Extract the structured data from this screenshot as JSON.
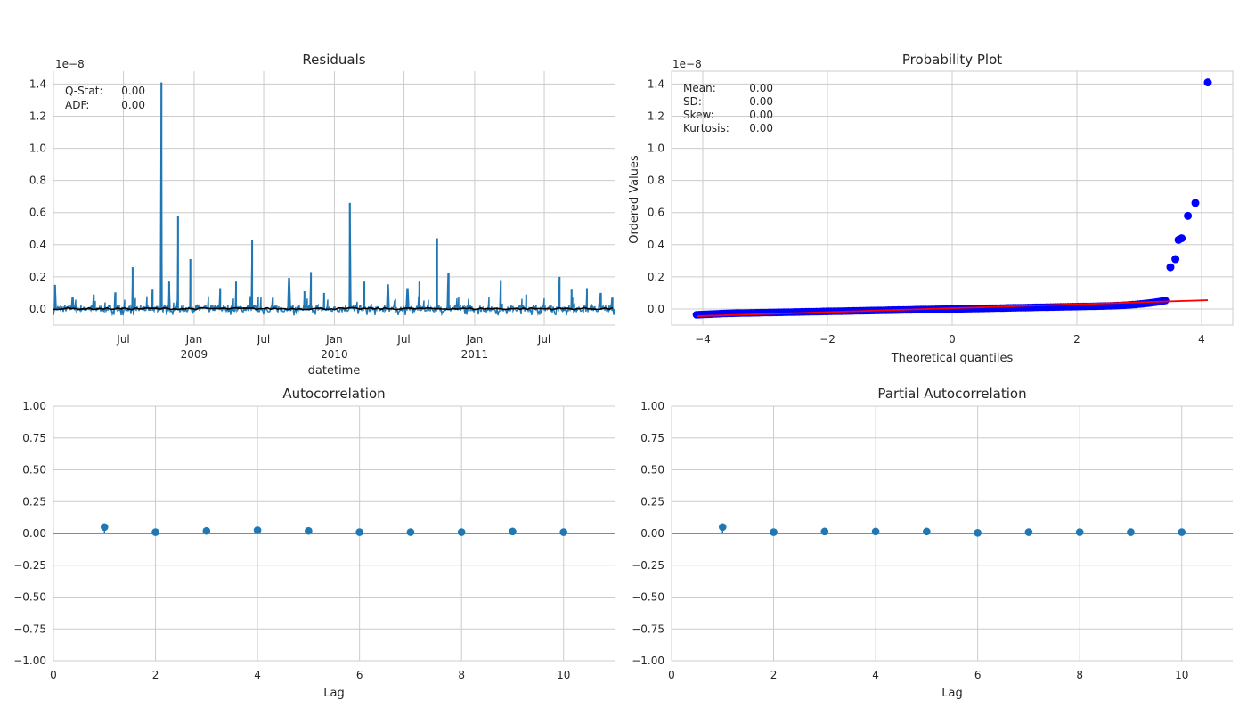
{
  "chart_data": [
    {
      "type": "line",
      "title": "Residuals",
      "xlabel": "datetime",
      "ylabel": "",
      "offset_text": "1e−8",
      "scale": 1e-08,
      "ylim": [
        -0.1,
        1.48
      ],
      "yticks": [
        0.0,
        0.2,
        0.4,
        0.6,
        0.8,
        1.0,
        1.2,
        1.4
      ],
      "ytick_labels": [
        "0.0",
        "0.2",
        "0.4",
        "0.6",
        "0.8",
        "1.0",
        "1.2",
        "1.4"
      ],
      "xlim": [
        "2008-01-01",
        "2011-12-31"
      ],
      "xticks": [
        {
          "date": "2008-07-01",
          "label": "Jul",
          "sub": ""
        },
        {
          "date": "2009-01-01",
          "label": "Jan",
          "sub": "2009"
        },
        {
          "date": "2009-07-01",
          "label": "Jul",
          "sub": ""
        },
        {
          "date": "2010-01-01",
          "label": "Jan",
          "sub": "2010"
        },
        {
          "date": "2010-07-01",
          "label": "Jul",
          "sub": ""
        },
        {
          "date": "2011-01-01",
          "label": "Jan",
          "sub": "2011"
        },
        {
          "date": "2011-07-01",
          "label": "Jul",
          "sub": ""
        }
      ],
      "spikes": [
        {
          "date": "2008-01-05",
          "value": 0.15
        },
        {
          "date": "2008-02-20",
          "value": 0.07
        },
        {
          "date": "2008-04-15",
          "value": 0.09
        },
        {
          "date": "2008-06-10",
          "value": 0.1
        },
        {
          "date": "2008-07-25",
          "value": 0.26
        },
        {
          "date": "2008-09-15",
          "value": 0.12
        },
        {
          "date": "2008-10-08",
          "value": 1.41
        },
        {
          "date": "2008-10-28",
          "value": 0.17
        },
        {
          "date": "2008-11-20",
          "value": 0.58
        },
        {
          "date": "2008-12-22",
          "value": 0.31
        },
        {
          "date": "2009-03-10",
          "value": 0.13
        },
        {
          "date": "2009-04-20",
          "value": 0.17
        },
        {
          "date": "2009-05-28",
          "value": 0.08
        },
        {
          "date": "2009-06-01",
          "value": 0.43
        },
        {
          "date": "2009-07-25",
          "value": 0.07
        },
        {
          "date": "2009-09-05",
          "value": 0.19
        },
        {
          "date": "2009-10-15",
          "value": 0.11
        },
        {
          "date": "2009-11-01",
          "value": 0.23
        },
        {
          "date": "2009-12-05",
          "value": 0.1
        },
        {
          "date": "2010-02-10",
          "value": 0.66
        },
        {
          "date": "2010-03-20",
          "value": 0.17
        },
        {
          "date": "2010-05-20",
          "value": 0.15
        },
        {
          "date": "2010-07-10",
          "value": 0.13
        },
        {
          "date": "2010-08-10",
          "value": 0.17
        },
        {
          "date": "2010-09-25",
          "value": 0.44
        },
        {
          "date": "2010-10-25",
          "value": 0.22
        },
        {
          "date": "2011-03-10",
          "value": 0.18
        },
        {
          "date": "2011-05-15",
          "value": 0.09
        },
        {
          "date": "2011-08-10",
          "value": 0.2
        },
        {
          "date": "2011-09-10",
          "value": 0.12
        },
        {
          "date": "2011-10-20",
          "value": 0.13
        },
        {
          "date": "2011-11-25",
          "value": 0.1
        },
        {
          "date": "2011-12-25",
          "value": 0.07
        }
      ],
      "annotations": [
        {
          "name": "Q-Stat:",
          "value": "0.00"
        },
        {
          "name": "ADF:",
          "value": "0.00"
        }
      ],
      "colors": {
        "series": "#1f77b4",
        "mean": "#000000"
      }
    },
    {
      "type": "scatter",
      "title": "Probability Plot",
      "xlabel": "Theoretical quantiles",
      "ylabel": "Ordered Values",
      "offset_text": "1e−8",
      "scale": 1e-08,
      "xlim": [
        -4.5,
        4.5
      ],
      "ylim": [
        -0.1,
        1.48
      ],
      "xticks": [
        -4,
        -2,
        0,
        2,
        4
      ],
      "xtick_labels": [
        "−4",
        "−2",
        "0",
        "2",
        "4"
      ],
      "yticks": [
        0.0,
        0.2,
        0.4,
        0.6,
        0.8,
        1.0,
        1.2,
        1.4
      ],
      "ytick_labels": [
        "0.0",
        "0.2",
        "0.4",
        "0.6",
        "0.8",
        "1.0",
        "1.2",
        "1.4"
      ],
      "fit_line": {
        "x": [
          -4.1,
          4.1
        ],
        "y": [
          -0.045,
          0.055
        ]
      },
      "outliers": [
        {
          "x": 4.1,
          "y": 1.41
        },
        {
          "x": 3.9,
          "y": 0.66
        },
        {
          "x": 3.78,
          "y": 0.58
        },
        {
          "x": 3.68,
          "y": 0.44
        },
        {
          "x": 3.63,
          "y": 0.43
        },
        {
          "x": 3.58,
          "y": 0.31
        },
        {
          "x": 3.5,
          "y": 0.26
        }
      ],
      "annotations": [
        {
          "name": "Mean:",
          "value": "0.00"
        },
        {
          "name": "SD:",
          "value": "0.00"
        },
        {
          "name": "Skew:",
          "value": "0.00"
        },
        {
          "name": "Kurtosis:",
          "value": "0.00"
        }
      ],
      "colors": {
        "points": "#0000ff",
        "line": "#ff0000"
      }
    },
    {
      "type": "stem",
      "title": "Autocorrelation",
      "xlabel": "Lag",
      "xlim": [
        0,
        11
      ],
      "ylim": [
        -1.0,
        1.0
      ],
      "xticks": [
        0,
        2,
        4,
        6,
        8,
        10
      ],
      "xtick_labels": [
        "0",
        "2",
        "4",
        "6",
        "8",
        "10"
      ],
      "yticks": [
        -1.0,
        -0.75,
        -0.5,
        -0.25,
        0.0,
        0.25,
        0.5,
        0.75,
        1.0
      ],
      "ytick_labels": [
        "−1.00",
        "−0.75",
        "−0.50",
        "−0.25",
        "0.00",
        "0.25",
        "0.50",
        "0.75",
        "1.00"
      ],
      "lags": [
        1,
        2,
        3,
        4,
        5,
        6,
        7,
        8,
        9,
        10
      ],
      "values": [
        0.05,
        0.01,
        0.02,
        0.025,
        0.02,
        0.01,
        0.01,
        0.01,
        0.015,
        0.01
      ],
      "colors": {
        "series": "#1f77b4"
      }
    },
    {
      "type": "stem",
      "title": "Partial Autocorrelation",
      "xlabel": "Lag",
      "xlim": [
        0,
        11
      ],
      "ylim": [
        -1.0,
        1.0
      ],
      "xticks": [
        0,
        2,
        4,
        6,
        8,
        10
      ],
      "xtick_labels": [
        "0",
        "2",
        "4",
        "6",
        "8",
        "10"
      ],
      "yticks": [
        -1.0,
        -0.75,
        -0.5,
        -0.25,
        0.0,
        0.25,
        0.5,
        0.75,
        1.0
      ],
      "ytick_labels": [
        "−1.00",
        "−0.75",
        "−0.50",
        "−0.25",
        "0.00",
        "0.25",
        "0.50",
        "0.75",
        "1.00"
      ],
      "lags": [
        1,
        2,
        3,
        4,
        5,
        6,
        7,
        8,
        9,
        10
      ],
      "values": [
        0.05,
        0.01,
        0.015,
        0.015,
        0.015,
        0.005,
        0.01,
        0.01,
        0.01,
        0.01
      ],
      "colors": {
        "series": "#1f77b4"
      }
    }
  ]
}
